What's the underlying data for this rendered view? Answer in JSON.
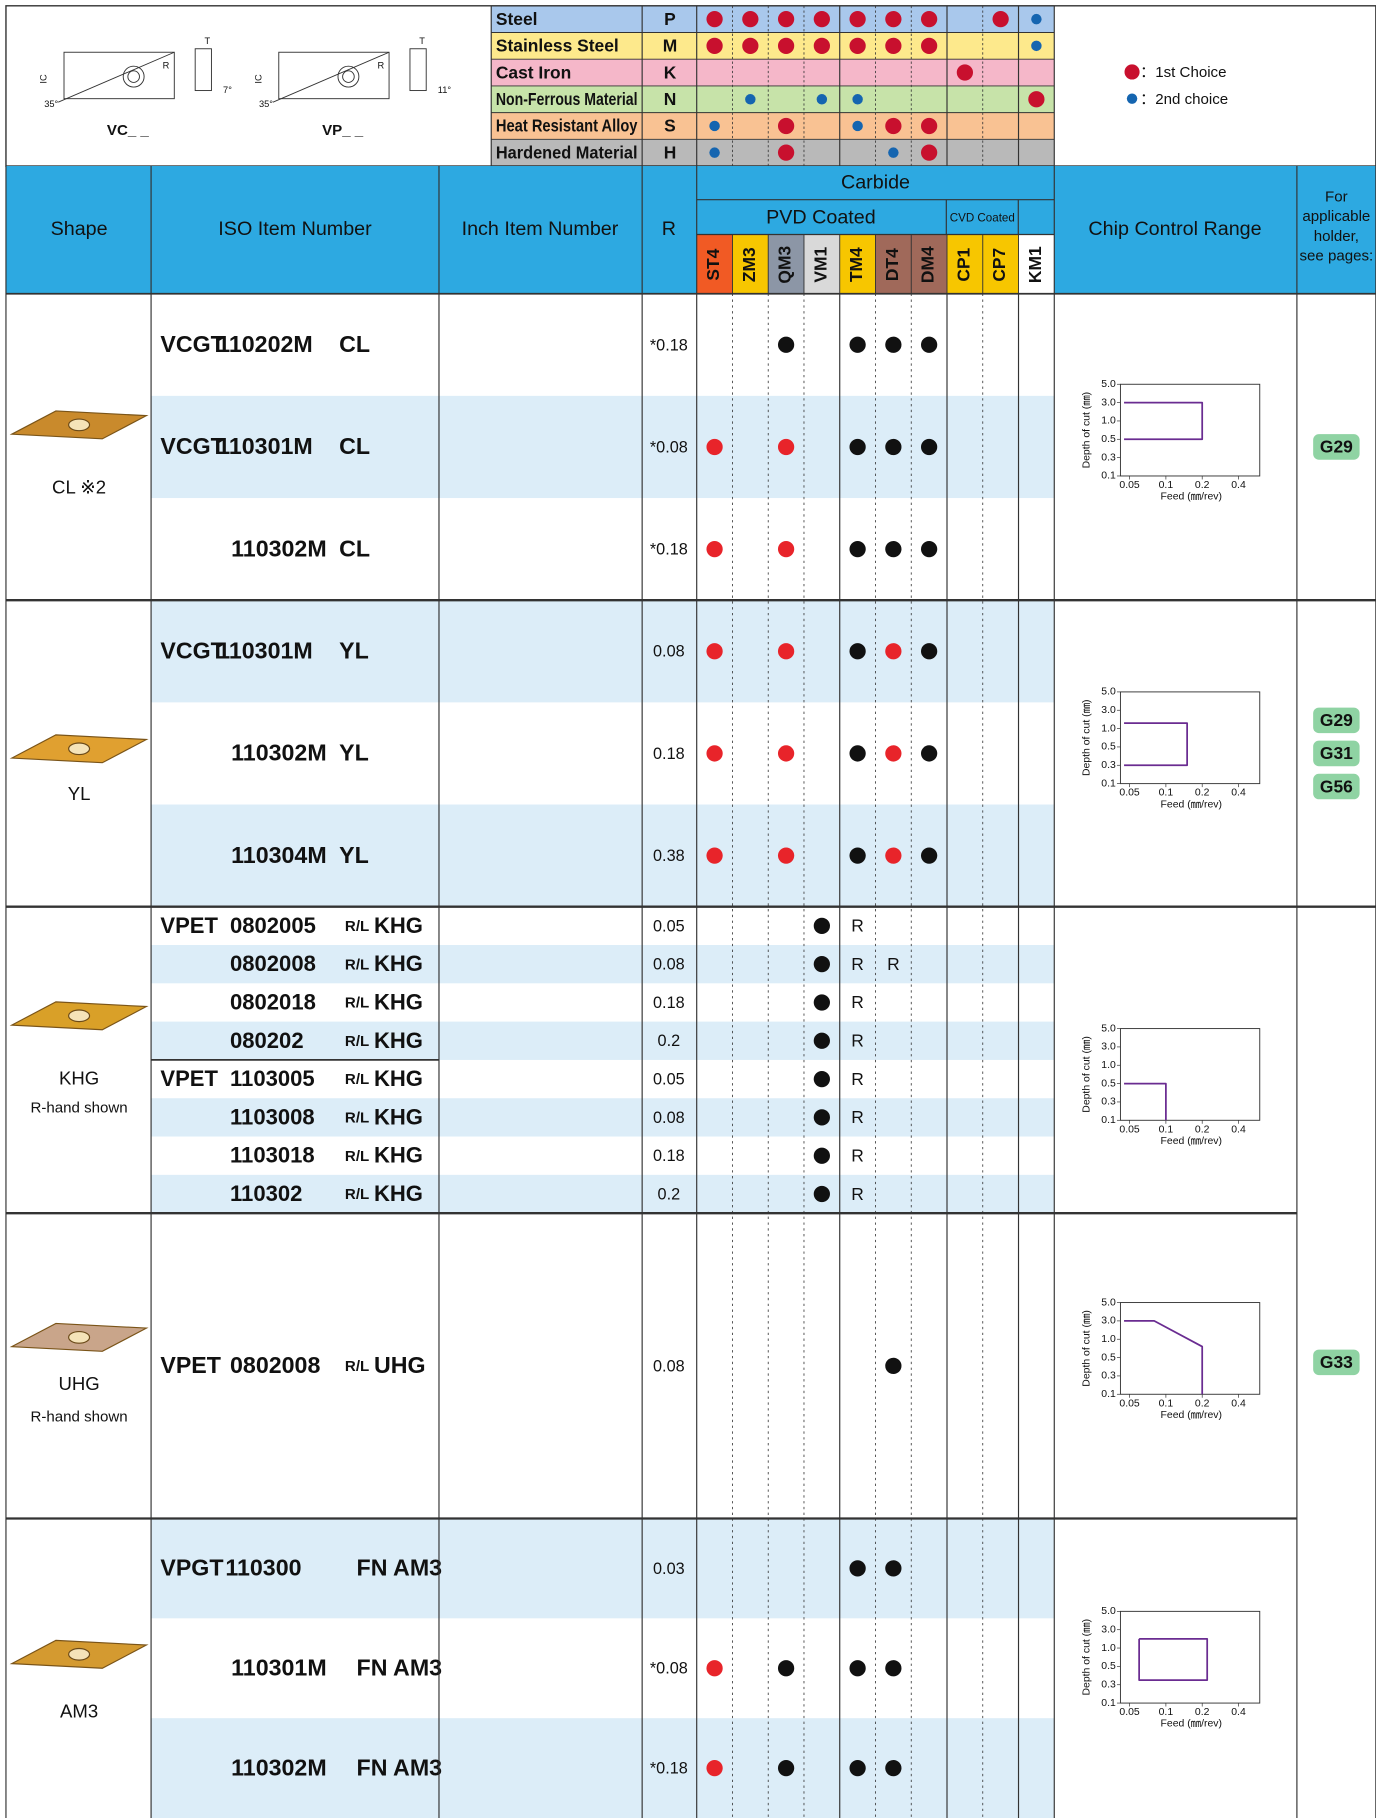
{
  "legend_block": {
    "diagrams": [
      {
        "label": "VC_ _",
        "angles": [
          "35°",
          "7°"
        ],
        "dims": [
          "IC",
          "R",
          "T"
        ]
      },
      {
        "label": "VP_ _",
        "angles": [
          "35°",
          "11°"
        ],
        "dims": [
          "IC",
          "R",
          "T"
        ]
      }
    ],
    "materials": [
      {
        "name": "Steel",
        "code": "P",
        "color": "#a9c8ec",
        "marks": [
          "#c8102e",
          "#c8102e",
          "#c8102e",
          "#c8102e",
          "#c8102e",
          "#c8102e",
          "#c8102e",
          null,
          "#c8102e",
          "#1565b0"
        ]
      },
      {
        "name": "Stainless Steel",
        "code": "M",
        "color": "#fde98c",
        "marks": [
          "#c8102e",
          "#c8102e",
          "#c8102e",
          "#c8102e",
          "#c8102e",
          "#c8102e",
          "#c8102e",
          null,
          null,
          "#1565b0"
        ]
      },
      {
        "name": "Cast Iron",
        "code": "K",
        "color": "#f5b7c9",
        "marks": [
          null,
          null,
          null,
          null,
          null,
          null,
          null,
          "#c8102e",
          null,
          null
        ]
      },
      {
        "name": "Non-Ferrous Material",
        "code": "N",
        "color": "#c7e3a9",
        "marks": [
          null,
          "#1565b0",
          null,
          "#1565b0",
          "#1565b0",
          null,
          null,
          null,
          null,
          "#c8102e"
        ]
      },
      {
        "name": "Heat Resistant Alloy",
        "code": "S",
        "color": "#f9c293",
        "marks": [
          "#1565b0",
          null,
          "#c8102e",
          null,
          "#1565b0",
          "#c8102e",
          "#c8102e",
          null,
          null,
          null
        ]
      },
      {
        "name": "Hardened Material",
        "code": "H",
        "color": "#b9b9b9",
        "marks": [
          "#1565b0",
          null,
          "#c8102e",
          null,
          null,
          "#1565b0",
          "#c8102e",
          null,
          null,
          null
        ]
      }
    ],
    "choices": [
      {
        "color": "#c8102e",
        "label": "：1st Choice"
      },
      {
        "color": "#1565b0",
        "label": "：2nd choice"
      }
    ]
  },
  "header": {
    "shape": "Shape",
    "iso": "ISO Item Number",
    "inch": "Inch Item Number",
    "r": "R",
    "carbide": "Carbide",
    "pvd": "PVD Coated",
    "cvd": "CVD Coated",
    "chip": "Chip Control Range",
    "holder": [
      "For",
      "applicable",
      "holder,",
      "see pages:"
    ]
  },
  "grades": [
    {
      "name": "ST4",
      "bg": "#f15a24",
      "fg": "#111111"
    },
    {
      "name": "ZM3",
      "bg": "#f7c600",
      "fg": "#111111"
    },
    {
      "name": "QM3",
      "bg": "#8c96a6",
      "fg": "#111111"
    },
    {
      "name": "VM1",
      "bg": "#d9d9d9",
      "fg": "#111111"
    },
    {
      "name": "TM4",
      "bg": "#f7c600",
      "fg": "#111111"
    },
    {
      "name": "DT4",
      "bg": "#a0695a",
      "fg": "#e8242a"
    },
    {
      "name": "DM4",
      "bg": "#a0695a",
      "fg": "#e8242a"
    },
    {
      "name": "CP1",
      "bg": "#f7c600",
      "fg": "#111111"
    },
    {
      "name": "CP7",
      "bg": "#f7c600",
      "fg": "#111111"
    },
    {
      "name": "KM1",
      "bg": "#ffffff",
      "fg": "#111111"
    }
  ],
  "groups": [
    {
      "shape": {
        "label": "CL ※2",
        "color": "#c98a2c"
      },
      "rows": [
        {
          "iso": {
            "prefix": "VCGT",
            "number": "110202M",
            "suffix": "CL"
          },
          "r": "*0.18",
          "stock": [
            null,
            null,
            "#111111",
            null,
            "#111111",
            "#111111",
            "#111111",
            null,
            null,
            null
          ]
        },
        {
          "iso": {
            "prefix": "VCGT",
            "number": "110301M",
            "suffix": "CL"
          },
          "r": "*0.08",
          "stock": [
            "#e8242a",
            null,
            "#e8242a",
            null,
            "#111111",
            "#111111",
            "#111111",
            null,
            null,
            null
          ]
        },
        {
          "iso": {
            "number": "110302M",
            "suffix": "CL"
          },
          "r": "*0.18",
          "stock": [
            "#e8242a",
            null,
            "#e8242a",
            null,
            "#111111",
            "#111111",
            "#111111",
            null,
            null,
            null
          ]
        }
      ],
      "chart": {
        "ylabel": "Depth of cut (㎜)",
        "xlabel": "Feed (㎜/rev)",
        "xlim": [
          0.042,
          0.6
        ],
        "ylim": [
          0.1,
          5
        ],
        "xlog": true,
        "xticks": [
          0.05,
          0.1,
          0.2,
          0.4
        ],
        "yticks": [
          0.1,
          0.3,
          0.5,
          {
            "value": 1,
            "label": "1.0"
          },
          {
            "value": 3,
            "label": "3.0"
          },
          {
            "value": 5,
            "label": "5.0"
          }
        ],
        "color": "#6a2c91",
        "feed": [
          0.045,
          0.2,
          0.2,
          0.045
        ],
        "depth": [
          3,
          3,
          0.5,
          0.5
        ]
      }
    },
    {
      "shape": {
        "label": "YL",
        "color": "#e0a030"
      },
      "rows": [
        {
          "iso": {
            "prefix": "VCGT",
            "number": "110301M",
            "suffix": "YL"
          },
          "r": "0.08",
          "stock": [
            "#e8242a",
            null,
            "#e8242a",
            null,
            "#111111",
            "#e8242a",
            "#111111",
            null,
            null,
            null
          ]
        },
        {
          "iso": {
            "number": "110302M",
            "suffix": "YL"
          },
          "r": "0.18",
          "stock": [
            "#e8242a",
            null,
            "#e8242a",
            null,
            "#111111",
            "#e8242a",
            "#111111",
            null,
            null,
            null
          ]
        },
        {
          "iso": {
            "number": "110304M",
            "suffix": "YL"
          },
          "r": "0.38",
          "stock": [
            "#e8242a",
            null,
            "#e8242a",
            null,
            "#111111",
            "#e8242a",
            "#111111",
            null,
            null,
            null
          ]
        }
      ],
      "chart": {
        "ylabel": "Depth of cut (㎜)",
        "xlabel": "Feed (㎜/rev)",
        "xlim": [
          0.042,
          0.6
        ],
        "ylim": [
          0.1,
          5
        ],
        "xlog": true,
        "xticks": [
          0.05,
          0.1,
          0.2,
          0.4
        ],
        "yticks": [
          0.1,
          0.3,
          0.5,
          {
            "value": 1,
            "label": "1.0"
          },
          {
            "value": 3,
            "label": "3.0"
          },
          {
            "value": 5,
            "label": "5.0"
          }
        ],
        "color": "#6a2c91",
        "feed": [
          0.045,
          0.15,
          0.15,
          0.045
        ],
        "depth": [
          1.6,
          1.6,
          0.3,
          0.3
        ]
      }
    },
    {
      "shape": {
        "label": "KHG",
        "note": "R-hand shown",
        "color": "#d9a028"
      },
      "rows": [
        {
          "iso": {
            "prefix": "VPET",
            "number": "0802005",
            "hand": "R/L",
            "suffix": "KHG"
          },
          "r": "0.05",
          "stock": [
            null,
            null,
            null,
            "#111111",
            "R",
            null,
            null,
            null,
            null,
            null
          ]
        },
        {
          "iso": {
            "number": "0802008",
            "hand": "R/L",
            "suffix": "KHG"
          },
          "r": "0.08",
          "stock": [
            null,
            null,
            null,
            "#111111",
            "R",
            "R",
            null,
            null,
            null,
            null
          ]
        },
        {
          "iso": {
            "number": "0802018",
            "hand": "R/L",
            "suffix": "KHG"
          },
          "r": "0.18",
          "stock": [
            null,
            null,
            null,
            "#111111",
            "R",
            null,
            null,
            null,
            null,
            null
          ]
        },
        {
          "iso": {
            "number": "080202",
            "hand": "R/L",
            "suffix": "KHG"
          },
          "r": "0.2",
          "stock": [
            null,
            null,
            null,
            "#111111",
            "R",
            null,
            null,
            null,
            null,
            null
          ]
        },
        {
          "iso": {
            "prefix": "VPET",
            "number": "1103005",
            "hand": "R/L",
            "suffix": "KHG"
          },
          "r": "0.05",
          "stock": [
            null,
            null,
            null,
            "#111111",
            "R",
            null,
            null,
            null,
            null,
            null
          ]
        },
        {
          "iso": {
            "number": "1103008",
            "hand": "R/L",
            "suffix": "KHG"
          },
          "r": "0.08",
          "stock": [
            null,
            null,
            null,
            "#111111",
            "R",
            null,
            null,
            null,
            null,
            null
          ]
        },
        {
          "iso": {
            "number": "1103018",
            "hand": "R/L",
            "suffix": "KHG"
          },
          "r": "0.18",
          "stock": [
            null,
            null,
            null,
            "#111111",
            "R",
            null,
            null,
            null,
            null,
            null
          ]
        },
        {
          "iso": {
            "number": "110302",
            "hand": "R/L",
            "suffix": "KHG"
          },
          "r": "0.2",
          "stock": [
            null,
            null,
            null,
            "#111111",
            "R",
            null,
            null,
            null,
            null,
            null
          ]
        }
      ],
      "chart": {
        "ylabel": "Depth of cut (㎜)",
        "xlabel": "Feed (㎜/rev)",
        "xlim": [
          0.042,
          0.6
        ],
        "ylim": [
          0.1,
          5
        ],
        "xlog": true,
        "xticks": [
          0.05,
          0.1,
          0.2,
          0.4
        ],
        "yticks": [
          0.1,
          0.3,
          0.5,
          {
            "value": 1,
            "label": "1.0"
          },
          {
            "value": 3,
            "label": "3.0"
          },
          {
            "value": 5,
            "label": "5.0"
          }
        ],
        "color": "#6a2c91",
        "feed": [
          0.045,
          0.1,
          0.1
        ],
        "depth": [
          0.5,
          0.5,
          0.1
        ]
      }
    },
    {
      "shape": {
        "label": "UHG",
        "note": "R-hand shown",
        "color": "#c9a58a"
      },
      "rows": [
        {
          "iso": {
            "prefix": "VPET",
            "number": "0802008",
            "hand": "R/L",
            "suffix": "UHG"
          },
          "r": "0.08",
          "stock": [
            null,
            null,
            null,
            null,
            null,
            "#111111",
            null,
            null,
            null,
            null
          ]
        }
      ],
      "chart": {
        "ylabel": "Depth of cut (㎜)",
        "xlabel": "Feed (㎜/rev)",
        "xlim": [
          0.042,
          0.6
        ],
        "ylim": [
          0.1,
          5
        ],
        "xlog": true,
        "xticks": [
          0.05,
          0.1,
          0.2,
          0.4
        ],
        "yticks": [
          0.1,
          0.3,
          0.5,
          {
            "value": 1,
            "label": "1.0"
          },
          {
            "value": 3,
            "label": "3.0"
          },
          {
            "value": 5,
            "label": "5.0"
          }
        ],
        "color": "#6a2c91",
        "feed": [
          0.045,
          0.08,
          0.2,
          0.2
        ],
        "depth": [
          3,
          3,
          0.8,
          0.1
        ]
      }
    },
    {
      "shape": {
        "label": "AM3",
        "color": "#d49a30"
      },
      "rows": [
        {
          "iso": {
            "prefix": "VPGT",
            "number": "110300",
            "suffix": "FN AM3"
          },
          "r": "0.03",
          "stock": [
            null,
            null,
            null,
            null,
            "#111111",
            "#111111",
            null,
            null,
            null,
            null
          ]
        },
        {
          "iso": {
            "number": "110301M",
            "suffix": "FN AM3"
          },
          "r": "*0.08",
          "stock": [
            "#e8242a",
            null,
            "#111111",
            null,
            "#111111",
            "#111111",
            null,
            null,
            null,
            null
          ]
        },
        {
          "iso": {
            "number": "110302M",
            "suffix": "FN AM3"
          },
          "r": "*0.18",
          "stock": [
            "#e8242a",
            null,
            "#111111",
            null,
            "#111111",
            "#111111",
            null,
            null,
            null,
            null
          ]
        }
      ],
      "chart": {
        "ylabel": "Depth of cut (㎜)",
        "xlabel": "Feed (㎜/rev)",
        "xlim": [
          0.042,
          0.6
        ],
        "ylim": [
          0.1,
          5
        ],
        "xlog": true,
        "xticks": [
          0.05,
          0.1,
          0.2,
          0.4
        ],
        "yticks": [
          0.1,
          0.3,
          0.5,
          {
            "value": 1,
            "label": "1.0"
          },
          {
            "value": 3,
            "label": "3.0"
          },
          {
            "value": 5,
            "label": "5.0"
          }
        ],
        "color": "#6a2c91",
        "feed": [
          0.06,
          0.22,
          0.22,
          0.06,
          0.06
        ],
        "depth": [
          2,
          2,
          0.35,
          0.35,
          2
        ]
      }
    }
  ],
  "holders": [
    {
      "pages": [
        "G29"
      ]
    },
    {
      "pages": [
        "G29",
        "G31",
        "G56"
      ]
    },
    {
      "pages": [
        "G33"
      ]
    }
  ]
}
